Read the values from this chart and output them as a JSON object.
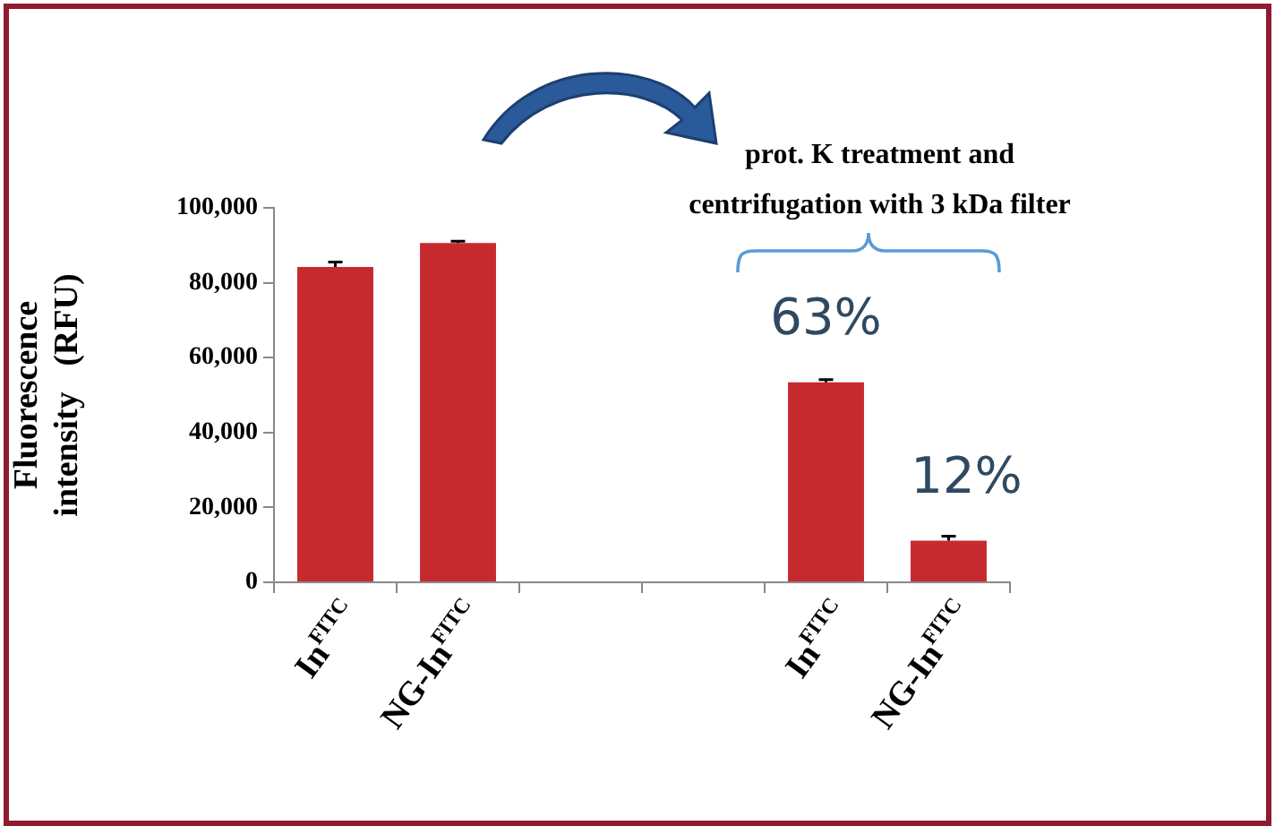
{
  "chart_data": {
    "type": "bar",
    "ylabel": "Fluorescence intensity (RFU)",
    "categories": [
      "In$^{FITC}$",
      "NG-In$^{FITC}$",
      null,
      null,
      "In$^{FITC}$",
      "NG-In$^{FITC}$"
    ],
    "values": [
      84200,
      90600,
      null,
      null,
      53400,
      11100
    ],
    "errors": [
      1300,
      500,
      null,
      null,
      700,
      1200
    ],
    "color": "#c62a2f",
    "ylim": [
      0,
      100000
    ],
    "yticks": [
      0,
      {
        "value": 20000,
        "label": "20,000"
      },
      {
        "value": 40000,
        "label": "40,000"
      },
      {
        "value": 60000,
        "label": "60,000"
      },
      {
        "value": 80000,
        "label": "80,000"
      },
      {
        "value": 100000,
        "label": "100,000"
      }
    ],
    "grid": false,
    "annotations": [
      "prot. K treatment and centrifugation with 3 kDa filter",
      "63%",
      "12%"
    ]
  }
}
